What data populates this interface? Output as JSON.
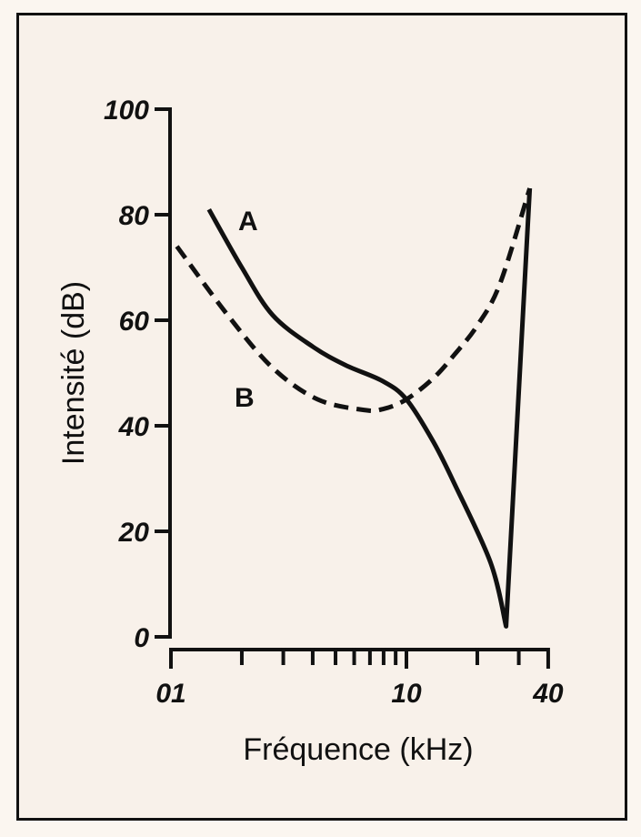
{
  "chart_data": {
    "type": "line",
    "title": "",
    "xlabel": "Fréquence (kHz)",
    "ylabel": "Intensité (dB)",
    "xscale": "log",
    "xlim": [
      1,
      40
    ],
    "ylim": [
      0,
      100
    ],
    "x_tick_labels": [
      "01",
      "10",
      "40"
    ],
    "x_tick_values": [
      1,
      10,
      40
    ],
    "x_minor_ticks": [
      2,
      3,
      4,
      5,
      6,
      7,
      8,
      9,
      20,
      30
    ],
    "y_ticks": [
      0,
      20,
      40,
      60,
      80,
      100
    ],
    "y_tick_labels": [
      "0",
      "20",
      "40",
      "60",
      "80",
      "100"
    ],
    "grid": false,
    "series": [
      {
        "name": "A",
        "style": "solid",
        "x": [
          1.45,
          2.0,
          2.7,
          4.0,
          5.5,
          7.9,
          10,
          13,
          16,
          22.8,
          26.5,
          33.4
        ],
        "y": [
          81,
          70,
          61,
          55,
          51.5,
          48.5,
          45,
          37,
          29,
          14,
          2,
          85
        ]
      },
      {
        "name": "B",
        "style": "dashed",
        "x": [
          1.06,
          1.74,
          2.7,
          4.2,
          6.6,
          8.0,
          10,
          13,
          16,
          20,
          25,
          33.4
        ],
        "y": [
          74,
          61,
          51,
          45,
          43,
          43.2,
          45,
          49,
          53.5,
          59,
          67,
          85
        ]
      }
    ]
  }
}
